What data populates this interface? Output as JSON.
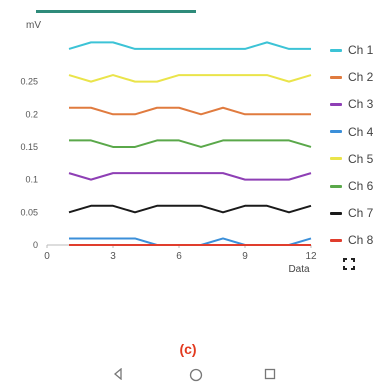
{
  "header": {
    "unit": "mV"
  },
  "chart_data": {
    "type": "line",
    "xlabel": "Data",
    "ylabel": "",
    "xlim": [
      0,
      12
    ],
    "ylim": [
      0,
      0.28
    ],
    "x_ticks": [
      0,
      3,
      6,
      9,
      12
    ],
    "y_ticks": [
      0,
      0.05,
      0.1,
      0.15,
      0.2,
      0.25
    ],
    "y_tick_labels": [
      "0",
      "0.05",
      "0.1",
      "0.15",
      "0.2",
      "0.25"
    ],
    "x": [
      1,
      2,
      3,
      4,
      5,
      6,
      7,
      8,
      9,
      10,
      11,
      12
    ],
    "grid": false,
    "legend": "right",
    "series": [
      {
        "name": "Ch 1",
        "color": "#3cc3d6",
        "values": [
          0.3,
          0.31,
          0.31,
          0.3,
          0.3,
          0.3,
          0.3,
          0.3,
          0.3,
          0.31,
          0.3,
          0.3
        ]
      },
      {
        "name": "Ch 2",
        "color": "#e07b3f",
        "values": [
          0.21,
          0.21,
          0.2,
          0.2,
          0.21,
          0.21,
          0.2,
          0.21,
          0.2,
          0.2,
          0.2,
          0.2
        ]
      },
      {
        "name": "Ch 3",
        "color": "#8e3fb5",
        "values": [
          0.11,
          0.1,
          0.11,
          0.11,
          0.11,
          0.11,
          0.11,
          0.11,
          0.1,
          0.1,
          0.1,
          0.11
        ]
      },
      {
        "name": "Ch 4",
        "color": "#3b8fd9",
        "values": [
          0.01,
          0.01,
          0.01,
          0.01,
          0.0,
          0.0,
          0.0,
          0.01,
          0.0,
          0.0,
          0.0,
          0.01
        ]
      },
      {
        "name": "Ch 5",
        "color": "#eae44a",
        "values": [
          0.26,
          0.25,
          0.26,
          0.25,
          0.25,
          0.26,
          0.26,
          0.26,
          0.26,
          0.26,
          0.25,
          0.26
        ]
      },
      {
        "name": "Ch 6",
        "color": "#5aa84a",
        "values": [
          0.16,
          0.16,
          0.15,
          0.15,
          0.16,
          0.16,
          0.15,
          0.16,
          0.16,
          0.16,
          0.16,
          0.15
        ]
      },
      {
        "name": "Ch 7",
        "color": "#1a1a1a",
        "values": [
          0.05,
          0.06,
          0.06,
          0.05,
          0.06,
          0.06,
          0.06,
          0.05,
          0.06,
          0.06,
          0.05,
          0.06
        ]
      },
      {
        "name": "Ch 8",
        "color": "#e03d2d",
        "values": [
          0.0,
          0.0,
          0.0,
          0.0,
          0.0,
          0.0,
          0.0,
          0.0,
          0.0,
          0.0,
          0.0,
          0.0
        ]
      }
    ]
  },
  "caption": "(c)",
  "icons": {
    "fullscreen": "fullscreen-icon",
    "back": "back-icon",
    "home": "home-icon",
    "recents": "recents-icon"
  }
}
